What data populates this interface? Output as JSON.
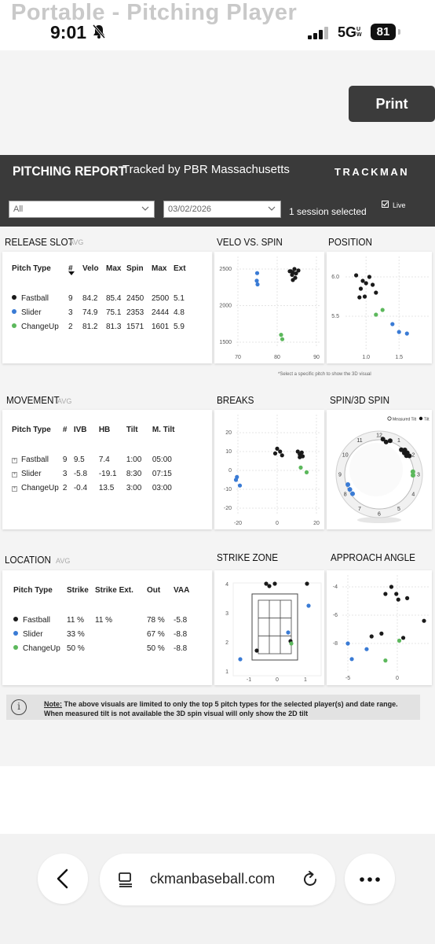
{
  "status_bar": {
    "ghost_title": "Portable - Pitching Player",
    "time": "9:01",
    "network": "5G",
    "network_sub": "UW",
    "battery": "81"
  },
  "print_label": "Print",
  "header": {
    "title": "PITCHING REPORT",
    "tracked_by": "Tracked by PBR Massachusetts",
    "brand": "TRACKMAN"
  },
  "filters": {
    "player_value": "All",
    "date_value": "03/02/2026",
    "session_text": "1 session selected",
    "live_label": "Live"
  },
  "pitch_colors": {
    "Fastball": "#1a1a1a",
    "Slider": "#3a7bd5",
    "ChangeUp": "#5cb85c"
  },
  "release_slot": {
    "title": "RELEASE SLOT",
    "avg": "AVG",
    "columns": [
      "Pitch Type",
      "#",
      "Velo",
      "Max",
      "Spin",
      "Max",
      "Ext"
    ],
    "rows": [
      {
        "type": "Fastball",
        "count": "9",
        "velo": "84.2",
        "max_velo": "85.4",
        "spin": "2450",
        "max_spin": "2500",
        "ext": "5.1"
      },
      {
        "type": "Slider",
        "count": "3",
        "velo": "74.9",
        "max_velo": "75.1",
        "spin": "2353",
        "max_spin": "2444",
        "ext": "4.8"
      },
      {
        "type": "ChangeUp",
        "count": "2",
        "velo": "81.2",
        "max_velo": "81.3",
        "spin": "1571",
        "max_spin": "1601",
        "ext": "5.9"
      }
    ]
  },
  "velo_vs_spin": {
    "title": "VELO VS. SPIN",
    "y_ticks": [
      "2500",
      "2000",
      "1500"
    ],
    "x_ticks": [
      "70",
      "80",
      "90"
    ],
    "hint": "*Select a specific pitch to show the 3D visual"
  },
  "position": {
    "title": "POSITION",
    "y_ticks": [
      "6.0",
      "5.5"
    ],
    "x_ticks": [
      "1.0",
      "1.5"
    ]
  },
  "movement": {
    "title": "MOVEMENT",
    "avg": "AVG",
    "columns": [
      "Pitch Type",
      "#",
      "IVB",
      "HB",
      "Tilt",
      "M. Tilt"
    ],
    "rows": [
      {
        "type": "Fastball",
        "count": "9",
        "ivb": "9.5",
        "hb": "7.4",
        "tilt": "1:00",
        "m_tilt": "05:00"
      },
      {
        "type": "Slider",
        "count": "3",
        "ivb": "-5.8",
        "hb": "-19.1",
        "tilt": "8:30",
        "m_tilt": "07:15"
      },
      {
        "type": "ChangeUp",
        "count": "2",
        "ivb": "-0.4",
        "hb": "13.5",
        "tilt": "3:00",
        "m_tilt": "03:00"
      }
    ]
  },
  "breaks": {
    "title": "BREAKS",
    "y_ticks": [
      "20",
      "10",
      "0",
      "-10",
      "-20"
    ],
    "x_ticks": [
      "-20",
      "0",
      "20"
    ]
  },
  "spin3d": {
    "title": "SPIN/3D SPIN",
    "legend_measured": "Measured Tilt",
    "legend_tilt": "Tilt",
    "clock": [
      "12",
      "1",
      "2",
      "3",
      "4",
      "5",
      "6",
      "7",
      "8",
      "9",
      "10",
      "11"
    ]
  },
  "location": {
    "title": "LOCATION",
    "avg": "AVG",
    "columns": [
      "Pitch Type",
      "Strike",
      "Strike Ext.",
      "Out",
      "VAA"
    ],
    "rows": [
      {
        "type": "Fastball",
        "strike": "11 %",
        "strike_ext": "11 %",
        "out": "78 %",
        "vaa": "-5.8"
      },
      {
        "type": "Slider",
        "strike": "33 %",
        "strike_ext": "",
        "out": "67 %",
        "vaa": "-8.8"
      },
      {
        "type": "ChangeUp",
        "strike": "50 %",
        "strike_ext": "",
        "out": "50 %",
        "vaa": "-8.8"
      }
    ]
  },
  "strike_zone": {
    "title": "STRIKE ZONE",
    "y_ticks": [
      "4",
      "3",
      "2",
      "1"
    ],
    "x_ticks": [
      "-1",
      "0",
      "1"
    ]
  },
  "approach_angle": {
    "title": "APPROACH ANGLE",
    "y_ticks": [
      "-4",
      "-6",
      "-8"
    ],
    "x_ticks": [
      "-5",
      "0"
    ]
  },
  "note": {
    "label": "Note:",
    "line1": "The above visuals are limited to only the top 5 pitch types for the selected player(s) and date range.",
    "line2": "When measured tilt is not available the 3D spin visual will only show the 2D tilt"
  },
  "browser": {
    "url": "ckmanbaseball.com"
  }
}
